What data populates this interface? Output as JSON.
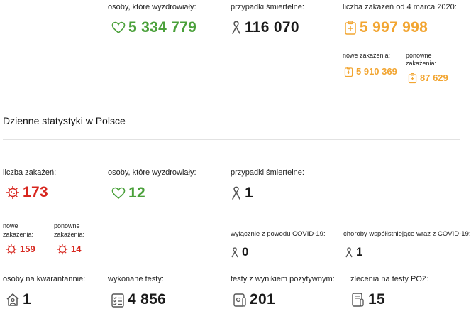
{
  "summary": {
    "recovered": {
      "label": "osoby, które wyzdrowiały:",
      "value": "5 334 779",
      "icon": "heart-icon"
    },
    "deaths": {
      "label": "przypadki śmiertelne:",
      "value": "116 070",
      "icon": "ribbon-icon"
    },
    "infections": {
      "label": "liczba zakażeń od 4 marca 2020:",
      "value": "5 997 998",
      "icon": "clipboard-icon",
      "new": {
        "label": "nowe zakażenia:",
        "value": "5 910 369"
      },
      "re": {
        "label": "ponowne zakażenia:",
        "value": "87 629"
      }
    }
  },
  "daily": {
    "title": "Dzienne statystyki w Polsce",
    "infections": {
      "label": "liczba zakażeń:",
      "value": "173",
      "icon": "virus-icon",
      "new": {
        "label": "nowe zakażenia:",
        "value": "159"
      },
      "re": {
        "label": "ponowne zakażenia:",
        "value": "14"
      }
    },
    "recovered": {
      "label": "osoby, które wyzdrowiały:",
      "value": "12"
    },
    "deaths": {
      "label": "przypadki śmiertelne:",
      "value": "1",
      "covid_only": {
        "label": "wyłącznie z powodu COVID-19:",
        "value": "0"
      },
      "comorbid": {
        "label": "choroby współistniejące wraz z COVID-19:",
        "value": "1"
      }
    },
    "quarantine": {
      "label": "osoby na kwarantannie:",
      "value": "1",
      "icon": "house-person-icon"
    },
    "tests": {
      "label": "wykonane testy:",
      "value": "4 856",
      "icon": "checklist-icon"
    },
    "positive_tests": {
      "label": "testy z wynikiem pozytywnym:",
      "value": "201",
      "icon": "test-tube-icon"
    },
    "poz_orders": {
      "label": "zlecenia na testy POZ:",
      "value": "15",
      "icon": "poz-order-icon"
    }
  },
  "colors": {
    "green": "#4aa03a",
    "orange": "#f2a531",
    "red": "#d7261e",
    "dark": "#1a1a1a"
  }
}
